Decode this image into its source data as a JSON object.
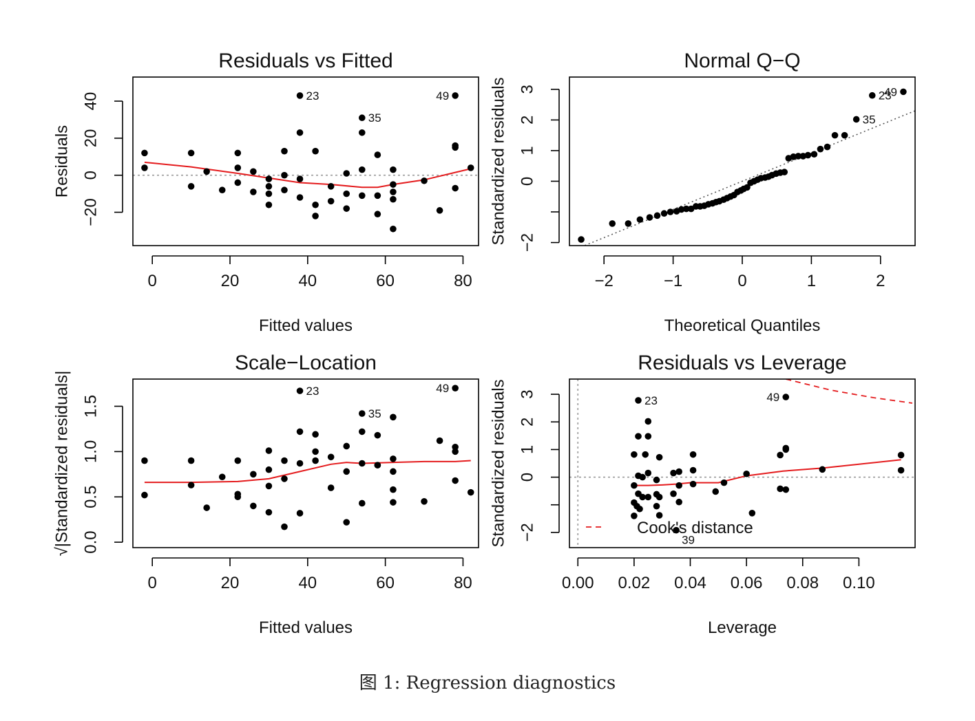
{
  "figure": {
    "caption": "图 1: Regression diagnostics",
    "colors": {
      "point": "#000000",
      "smooth": "#e41a1c",
      "reference": "#999999",
      "cooks": "#e41a1c"
    }
  },
  "chart_data": [
    {
      "type": "scatter",
      "title": "Residuals vs Fitted",
      "xlabel": "Fitted values",
      "ylabel": "Residuals",
      "xlim": [
        -5,
        84
      ],
      "ylim": [
        -38,
        53
      ],
      "xticks": [
        0,
        20,
        40,
        60,
        80
      ],
      "yticks": [
        -20,
        0,
        20,
        40
      ],
      "x_tick_labels": [
        "0",
        "20",
        "40",
        "60",
        "80"
      ],
      "y_tick_labels": [
        "−20",
        "0",
        "20",
        "40"
      ],
      "reference_line": {
        "y": 0,
        "style": "dotted"
      },
      "points": [
        [
          -2,
          12
        ],
        [
          -2,
          4
        ],
        [
          10,
          12
        ],
        [
          10,
          -6
        ],
        [
          14,
          2
        ],
        [
          18,
          -8
        ],
        [
          22,
          12
        ],
        [
          22,
          4
        ],
        [
          22,
          -4
        ],
        [
          26,
          2
        ],
        [
          26,
          -9
        ],
        [
          30,
          -2
        ],
        [
          30,
          -6
        ],
        [
          30,
          -10
        ],
        [
          30,
          -16
        ],
        [
          34,
          13
        ],
        [
          34,
          0
        ],
        [
          34,
          -8
        ],
        [
          38,
          43
        ],
        [
          38,
          23
        ],
        [
          38,
          -2
        ],
        [
          38,
          -12
        ],
        [
          42,
          13
        ],
        [
          42,
          -16
        ],
        [
          42,
          -22
        ],
        [
          46,
          -6
        ],
        [
          46,
          -14
        ],
        [
          50,
          1
        ],
        [
          50,
          -10
        ],
        [
          50,
          -18
        ],
        [
          54,
          31
        ],
        [
          54,
          23
        ],
        [
          54,
          3
        ],
        [
          54,
          -11
        ],
        [
          58,
          11
        ],
        [
          58,
          -11
        ],
        [
          58,
          -21
        ],
        [
          62,
          3
        ],
        [
          62,
          -5
        ],
        [
          62,
          -9
        ],
        [
          62,
          -13
        ],
        [
          62,
          -29
        ],
        [
          70,
          -3
        ],
        [
          74,
          -19
        ],
        [
          78,
          43
        ],
        [
          78,
          16
        ],
        [
          78,
          15
        ],
        [
          78,
          -7
        ],
        [
          82,
          4
        ]
      ],
      "smooth": [
        [
          -2,
          7
        ],
        [
          10,
          4.5
        ],
        [
          22,
          1
        ],
        [
          30,
          -1.5
        ],
        [
          38,
          -4
        ],
        [
          46,
          -5
        ],
        [
          54,
          -6.5
        ],
        [
          58,
          -6.5
        ],
        [
          62,
          -5
        ],
        [
          70,
          -2.5
        ],
        [
          78,
          1.5
        ],
        [
          82,
          3.5
        ]
      ],
      "annotations": [
        {
          "x": 38,
          "y": 43,
          "label": "23",
          "side": "right"
        },
        {
          "x": 54,
          "y": 31,
          "label": "35",
          "side": "right"
        },
        {
          "x": 78,
          "y": 43,
          "label": "49",
          "side": "left"
        }
      ]
    },
    {
      "type": "scatter",
      "title": "Normal Q−Q",
      "xlabel": "Theoretical Quantiles",
      "ylabel": "Standardized residuals",
      "xlim": [
        -2.5,
        2.5
      ],
      "ylim": [
        -2.1,
        3.4
      ],
      "xticks": [
        -2,
        -1,
        0,
        1,
        2
      ],
      "yticks": [
        -2,
        -1,
        0,
        1,
        2,
        3
      ],
      "x_tick_labels": [
        "−2",
        "−1",
        "0",
        "1",
        "2"
      ],
      "y_tick_labels": [
        "−2",
        "",
        "0",
        "1",
        "2",
        "3"
      ],
      "reference_line": {
        "slope": 0.92,
        "intercept": 0.0,
        "style": "dotted"
      },
      "points": [
        [
          -2.33,
          -1.9
        ],
        [
          -1.88,
          -1.38
        ],
        [
          -1.65,
          -1.38
        ],
        [
          -1.48,
          -1.25
        ],
        [
          -1.34,
          -1.18
        ],
        [
          -1.23,
          -1.12
        ],
        [
          -1.13,
          -1.05
        ],
        [
          -1.04,
          -1.0
        ],
        [
          -0.95,
          -0.98
        ],
        [
          -0.88,
          -0.92
        ],
        [
          -0.81,
          -0.9
        ],
        [
          -0.74,
          -0.9
        ],
        [
          -0.67,
          -0.82
        ],
        [
          -0.61,
          -0.82
        ],
        [
          -0.55,
          -0.8
        ],
        [
          -0.49,
          -0.75
        ],
        [
          -0.43,
          -0.72
        ],
        [
          -0.38,
          -0.68
        ],
        [
          -0.33,
          -0.65
        ],
        [
          -0.27,
          -0.6
        ],
        [
          -0.22,
          -0.55
        ],
        [
          -0.17,
          -0.5
        ],
        [
          -0.12,
          -0.45
        ],
        [
          -0.07,
          -0.35
        ],
        [
          -0.02,
          -0.3
        ],
        [
          0.02,
          -0.25
        ],
        [
          0.07,
          -0.2
        ],
        [
          0.12,
          -0.05
        ],
        [
          0.17,
          0.0
        ],
        [
          0.22,
          0.05
        ],
        [
          0.27,
          0.1
        ],
        [
          0.33,
          0.12
        ],
        [
          0.38,
          0.15
        ],
        [
          0.43,
          0.2
        ],
        [
          0.49,
          0.25
        ],
        [
          0.55,
          0.28
        ],
        [
          0.61,
          0.3
        ],
        [
          0.67,
          0.75
        ],
        [
          0.74,
          0.8
        ],
        [
          0.81,
          0.82
        ],
        [
          0.88,
          0.82
        ],
        [
          0.95,
          0.85
        ],
        [
          1.04,
          0.88
        ],
        [
          1.13,
          1.05
        ],
        [
          1.23,
          1.12
        ],
        [
          1.34,
          1.5
        ],
        [
          1.48,
          1.5
        ],
        [
          1.65,
          2.02
        ],
        [
          1.88,
          2.8
        ],
        [
          2.33,
          2.92
        ]
      ],
      "annotations": [
        {
          "x": 2.33,
          "y": 2.92,
          "label": "49",
          "side": "left"
        },
        {
          "x": 1.88,
          "y": 2.8,
          "label": "23",
          "side": "right"
        },
        {
          "x": 1.65,
          "y": 2.02,
          "label": "35",
          "side": "right"
        }
      ]
    },
    {
      "type": "scatter",
      "title": "Scale−Location",
      "xlabel": "Fitted values",
      "ylabel": "√|Standardized residuals|",
      "xlim": [
        -5,
        84
      ],
      "ylim": [
        -0.06,
        1.8
      ],
      "xticks": [
        0,
        20,
        40,
        60,
        80
      ],
      "yticks": [
        0.0,
        0.5,
        1.0,
        1.5
      ],
      "x_tick_labels": [
        "0",
        "20",
        "40",
        "60",
        "80"
      ],
      "y_tick_labels": [
        "0.0",
        "0.5",
        "1.0",
        "1.5"
      ],
      "points": [
        [
          -2,
          0.9
        ],
        [
          -2,
          0.52
        ],
        [
          10,
          0.9
        ],
        [
          10,
          0.63
        ],
        [
          14,
          0.38
        ],
        [
          18,
          0.72
        ],
        [
          22,
          0.9
        ],
        [
          22,
          0.53
        ],
        [
          22,
          0.5
        ],
        [
          26,
          0.75
        ],
        [
          26,
          0.4
        ],
        [
          30,
          1.01
        ],
        [
          30,
          0.8
        ],
        [
          30,
          0.62
        ],
        [
          30,
          0.33
        ],
        [
          34,
          0.9
        ],
        [
          34,
          0.7
        ],
        [
          34,
          0.17
        ],
        [
          38,
          1.67
        ],
        [
          38,
          1.22
        ],
        [
          38,
          0.87
        ],
        [
          38,
          0.32
        ],
        [
          42,
          1.19
        ],
        [
          42,
          1.0
        ],
        [
          42,
          0.9
        ],
        [
          46,
          0.94
        ],
        [
          46,
          0.6
        ],
        [
          50,
          1.06
        ],
        [
          50,
          0.78
        ],
        [
          50,
          0.22
        ],
        [
          54,
          1.42
        ],
        [
          54,
          1.22
        ],
        [
          54,
          0.87
        ],
        [
          54,
          0.43
        ],
        [
          58,
          1.18
        ],
        [
          58,
          0.85
        ],
        [
          58,
          0.85
        ],
        [
          62,
          1.38
        ],
        [
          62,
          0.92
        ],
        [
          62,
          0.78
        ],
        [
          62,
          0.58
        ],
        [
          62,
          0.44
        ],
        [
          70,
          0.45
        ],
        [
          74,
          1.12
        ],
        [
          78,
          1.7
        ],
        [
          78,
          1.05
        ],
        [
          78,
          1.0
        ],
        [
          78,
          0.68
        ],
        [
          82,
          0.55
        ]
      ],
      "smooth": [
        [
          -2,
          0.66
        ],
        [
          10,
          0.66
        ],
        [
          22,
          0.67
        ],
        [
          30,
          0.7
        ],
        [
          38,
          0.78
        ],
        [
          46,
          0.86
        ],
        [
          50,
          0.88
        ],
        [
          54,
          0.87
        ],
        [
          62,
          0.88
        ],
        [
          70,
          0.89
        ],
        [
          78,
          0.89
        ],
        [
          82,
          0.9
        ]
      ],
      "annotations": [
        {
          "x": 38,
          "y": 1.67,
          "label": "23",
          "side": "right"
        },
        {
          "x": 54,
          "y": 1.42,
          "label": "35",
          "side": "right"
        },
        {
          "x": 78,
          "y": 1.7,
          "label": "49",
          "side": "left"
        }
      ]
    },
    {
      "type": "scatter",
      "title": "Residuals vs Leverage",
      "xlabel": "Leverage",
      "ylabel": "Standardized residuals",
      "xlim": [
        -0.003,
        0.12
      ],
      "ylim": [
        -2.55,
        3.55
      ],
      "xticks": [
        0.0,
        0.02,
        0.04,
        0.06,
        0.08,
        0.1
      ],
      "yticks": [
        -2,
        -1,
        0,
        1,
        2,
        3
      ],
      "x_tick_labels": [
        "0.00",
        "0.02",
        "0.04",
        "0.06",
        "0.08",
        "0.10"
      ],
      "y_tick_labels": [
        "−2",
        "",
        "0",
        "1",
        "2",
        "3"
      ],
      "reference_line": {
        "y": 0,
        "x": 0,
        "style": "dotted"
      },
      "points": [
        [
          0.0215,
          2.78
        ],
        [
          0.025,
          2.02
        ],
        [
          0.0215,
          1.48
        ],
        [
          0.025,
          1.48
        ],
        [
          0.02,
          0.82
        ],
        [
          0.024,
          0.82
        ],
        [
          0.029,
          0.72
        ],
        [
          0.041,
          0.82
        ],
        [
          0.0215,
          0.05
        ],
        [
          0.023,
          0.0
        ],
        [
          0.025,
          0.15
        ],
        [
          0.028,
          -0.1
        ],
        [
          0.034,
          0.15
        ],
        [
          0.036,
          0.2
        ],
        [
          0.041,
          0.25
        ],
        [
          0.02,
          -0.3
        ],
        [
          0.0215,
          -0.6
        ],
        [
          0.023,
          -0.72
        ],
        [
          0.025,
          -0.72
        ],
        [
          0.028,
          -0.62
        ],
        [
          0.029,
          -0.72
        ],
        [
          0.034,
          -0.6
        ],
        [
          0.036,
          -0.3
        ],
        [
          0.041,
          -0.25
        ],
        [
          0.02,
          -0.92
        ],
        [
          0.021,
          -1.05
        ],
        [
          0.022,
          -1.15
        ],
        [
          0.028,
          -1.05
        ],
        [
          0.029,
          -1.38
        ],
        [
          0.036,
          -0.9
        ],
        [
          0.02,
          -1.4
        ],
        [
          0.035,
          -1.92
        ],
        [
          0.049,
          -0.52
        ],
        [
          0.052,
          -0.2
        ],
        [
          0.06,
          0.12
        ],
        [
          0.062,
          -1.3
        ],
        [
          0.072,
          0.8
        ],
        [
          0.074,
          1.05
        ],
        [
          0.074,
          1.0
        ],
        [
          0.072,
          -0.42
        ],
        [
          0.074,
          -0.45
        ],
        [
          0.074,
          2.9
        ],
        [
          0.087,
          0.28
        ],
        [
          0.115,
          0.8
        ],
        [
          0.115,
          0.25
        ]
      ],
      "smooth": [
        [
          0.02,
          -0.3
        ],
        [
          0.025,
          -0.3
        ],
        [
          0.03,
          -0.28
        ],
        [
          0.035,
          -0.25
        ],
        [
          0.04,
          -0.2
        ],
        [
          0.05,
          -0.2
        ],
        [
          0.06,
          0.05
        ],
        [
          0.073,
          0.22
        ],
        [
          0.087,
          0.33
        ],
        [
          0.115,
          0.63
        ]
      ],
      "cooks_distance": [
        [
          0.074,
          3.55
        ],
        [
          0.09,
          3.15
        ],
        [
          0.105,
          2.88
        ],
        [
          0.119,
          2.68
        ]
      ],
      "legend": {
        "label": "Cook's distance",
        "position": "bottom-left"
      },
      "annotations": [
        {
          "x": 0.0215,
          "y": 2.78,
          "label": "23",
          "side": "right"
        },
        {
          "x": 0.074,
          "y": 2.9,
          "label": "49",
          "side": "left"
        },
        {
          "x": 0.035,
          "y": -1.92,
          "label": "39",
          "side": "below"
        }
      ]
    }
  ]
}
